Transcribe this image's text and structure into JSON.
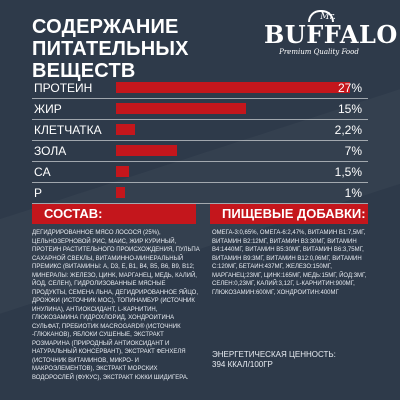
{
  "header": {
    "title_line1": "СОДЕРЖАНИЕ",
    "title_line2": "ПИТАТЕЛЬНЫХ ВЕЩЕСТВ"
  },
  "logo": {
    "mr": "Mr.",
    "brand": "BUFFALO",
    "tagline": "Premium Quality Food"
  },
  "nutrients": [
    {
      "label": "ПРОТЕИН",
      "value": "27%",
      "level": 27
    },
    {
      "label": "ЖИР",
      "value": "15%",
      "level": 15
    },
    {
      "label": "КЛЕТЧАТКА",
      "value": "2,2%",
      "level": 2.2
    },
    {
      "label": "ЗОЛА",
      "value": "7%",
      "level": 7
    },
    {
      "label": "CA",
      "value": "1,5%",
      "level": 1.5
    },
    {
      "label": "P",
      "value": "1%",
      "level": 1
    }
  ],
  "composition": {
    "heading": "СОСТАВ:",
    "text": "ДЕГИДРИРОВАННОЕ МЯСО ЛОСОСЯ (25%), ЦЕЛЬНОЗЕРНОВОЙ РИС, МАИС, ЖИР КУРИНЫЙ, ПРОТЕИН РАСТИТЕЛЬНОГО ПРОИСХОЖДЕНИЯ, ПУЛЬПА САХАРНОЙ СВЕКЛЫ, ВИТАМИННО-МИНЕРАЛЬНЫЙ ПРЕМИКС (ВИТАМИНЫ: A, D3, E, B1, B4, B5, B6, B9, B12; МИНЕРАЛЫ: ЖЕЛЕЗО, ЦИНК, МАРГАНЕЦ, МЕДЬ, КАЛИЙ, ЙОД, СЕЛЕН), ГИДРОЛИЗОВАННЫЕ МЯСНЫЕ ПРОДУКТЫ, СЕМЕНА ЛЬНА, ДЕГИДРИРОВАННОЕ ЯЙЦО, ДРОЖЖИ (ИСТОЧНИК МОС), ТОПИНАМБУР (ИСТОЧНИК ИНУЛИНА), АНТИОКСИДАНТ, L-КАРНИТИН, ГЛЮКОЗАМИНА ГИДРОХЛОРИД, ХОНДРОИТИНА СУЛЬФАТ, ПРЕБИОТИК MACROGARD® (ИСТОЧНИК -ГЛЮКАНОВ), ЯБЛОКИ СУШЕНЫЕ, ЭКСТРАКТ РОЗМАРИНА (ПРИРОДНЫЙ АНТИОКСИДАНТ И НАТУРАЛЬНЫЙ КОНСЕРВАНТ), ЭКСТРАКТ ФЕНХЕЛЯ (ИСТОЧНИК ВИТАМИНОВ, МИКРО- И МАКРОЭЛЕМЕНТОВ), ЭКСТРАКТ МОРСКИХ ВОДОРОСЛЕЙ (ФУКУС), ЭКСТРАКТ ЮККИ ШИДИГЕРА."
  },
  "additives": {
    "heading": "ПИЩЕВЫЕ ДОБАВКИ:",
    "text": "ОМЕГА-3:0,65%, ОМЕГА-6:2,47%, ВИТАМИН B1:7,5МГ, ВИТАМИН B2:12МГ, ВИТАМИН B3:30МГ, ВИТАМИН B4:1440МГ, ВИТАМИН B5:30МГ, ВИТАМИН B6:3,75МГ, ВИТАМИН B9:3МГ, ВИТАМИН B12:0,06МГ, ВИТАМИН C:120МГ, БЕТАИН:437МГ, ЖЕЛЕЗО:150МГ, МАРГАНЕЦ:23МГ, ЦИНК:165МГ, МЕДЬ:15МГ, ЙОД:3МГ, СЕЛЕН:0,23МГ, КАЛИЙ:3,12Г, L-КАРНИТИН:900МГ, ГЛЮКОЗАМИН:600МГ, ХОНДРОИТИН:400МГ",
    "energy_line1": "ЭНЕРГЕТИЧЕСКАЯ ЦЕННОСТЬ:",
    "energy_line2": "394 ККАЛ/100ГР"
  },
  "colors": {
    "background": "#2e3a4a",
    "accent": "#c4161c"
  }
}
